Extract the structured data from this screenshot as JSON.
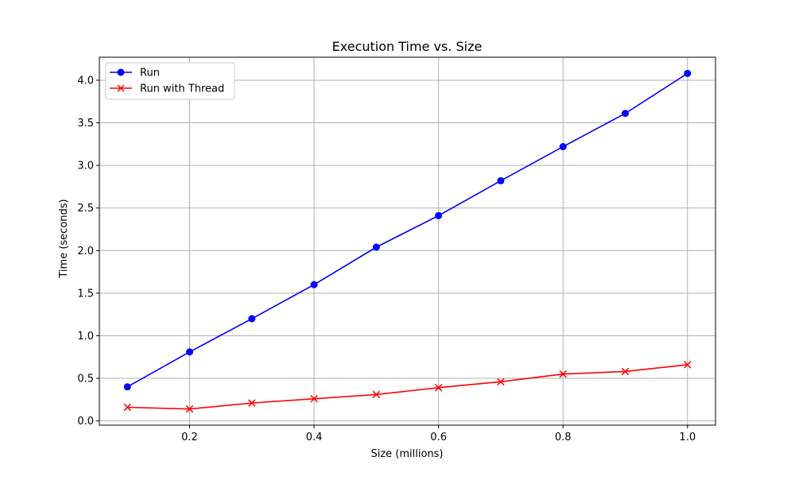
{
  "chart_data": {
    "type": "line",
    "title": "Execution Time vs. Size",
    "xlabel": "Size (millions)",
    "ylabel": "Time (seconds)",
    "xlim": [
      0.055,
      1.045
    ],
    "ylim": [
      -0.05,
      4.27
    ],
    "xticks": [
      0.2,
      0.4,
      0.6,
      0.8,
      1.0
    ],
    "xtick_labels": [
      "0.2",
      "0.4",
      "0.6",
      "0.8",
      "1.0"
    ],
    "yticks": [
      0.0,
      0.5,
      1.0,
      1.5,
      2.0,
      2.5,
      3.0,
      3.5,
      4.0
    ],
    "ytick_labels": [
      "0.0",
      "0.5",
      "1.0",
      "1.5",
      "2.0",
      "2.5",
      "3.0",
      "3.5",
      "4.0"
    ],
    "grid": true,
    "legend_position": "top-left",
    "x": [
      0.1,
      0.2,
      0.3,
      0.4,
      0.5,
      0.6,
      0.7,
      0.8,
      0.9,
      1.0
    ],
    "series": [
      {
        "name": "Run",
        "color": "#0000ff",
        "marker": "circle",
        "values": [
          0.4,
          0.81,
          1.2,
          1.6,
          2.04,
          2.41,
          2.82,
          3.22,
          3.61,
          4.08
        ]
      },
      {
        "name": "Run with Thread",
        "color": "#ff0000",
        "marker": "x",
        "values": [
          0.16,
          0.14,
          0.21,
          0.26,
          0.31,
          0.39,
          0.46,
          0.55,
          0.58,
          0.66
        ]
      }
    ]
  }
}
